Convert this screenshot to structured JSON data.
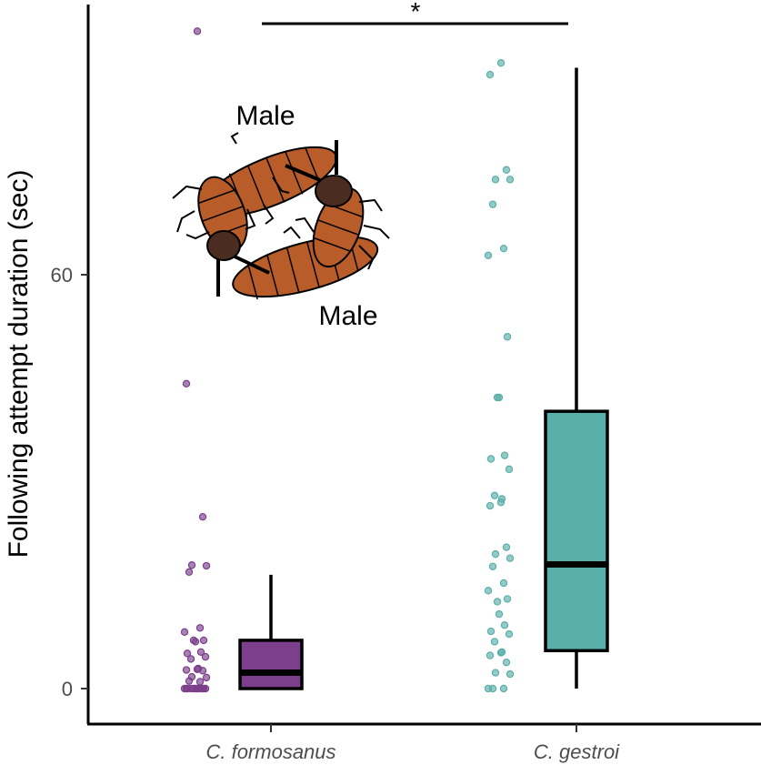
{
  "chart_data": {
    "type": "box",
    "ylabel": "Following attempt duration (sec)",
    "xlabel": "",
    "ylim": [
      -5,
      99
    ],
    "yticks": [
      0,
      60
    ],
    "categories": [
      "C. formosanus",
      "C. gestroi"
    ],
    "colors": {
      "C. formosanus": "#7b3f8c",
      "C. gestroi": "#5aafaa"
    },
    "boxes": [
      {
        "category": "C. formosanus",
        "whisker_low": 0,
        "q1": 0,
        "median": 2.3,
        "q3": 7,
        "whisker_high": 16.5
      },
      {
        "category": "C. gestroi",
        "whisker_low": 0,
        "q1": 5.5,
        "median": 18,
        "q3": 40.2,
        "whisker_high": 90
      }
    ],
    "points": [
      {
        "category": "C. formosanus",
        "values": [
          95.3,
          44.2,
          24.9,
          17.9,
          17.8,
          16.9,
          8.8,
          8.2,
          7.0,
          7.0,
          6.8,
          5.3,
          5.1,
          4.6,
          4.3,
          2.9,
          2.8,
          2.7,
          2.6,
          1.7,
          1.6,
          1.1,
          1.0,
          0,
          0,
          0,
          0,
          0,
          0,
          0,
          0,
          0,
          0,
          0,
          0
        ]
      },
      {
        "category": "C. gestroi",
        "values": [
          90.7,
          89.0,
          75.2,
          73.8,
          73.8,
          70.2,
          63.8,
          62.8,
          51.0,
          42.2,
          42.2,
          33.8,
          33.3,
          31.8,
          28.0,
          27.5,
          27.0,
          26.5,
          20.5,
          19.5,
          18.9,
          17.7,
          15.3,
          14.2,
          13.0,
          12.6,
          10.8,
          9.2,
          8.3,
          7.9,
          6.8,
          5.3,
          5.2,
          4.8,
          3.8,
          2.3,
          2.1,
          0,
          0,
          0
        ]
      }
    ],
    "annotations": [
      {
        "text": "Male"
      },
      {
        "text": "Male"
      }
    ],
    "significance": {
      "label": "*",
      "between": [
        "C. formosanus",
        "C. gestroi"
      ]
    },
    "grid": false,
    "legend": "none"
  }
}
